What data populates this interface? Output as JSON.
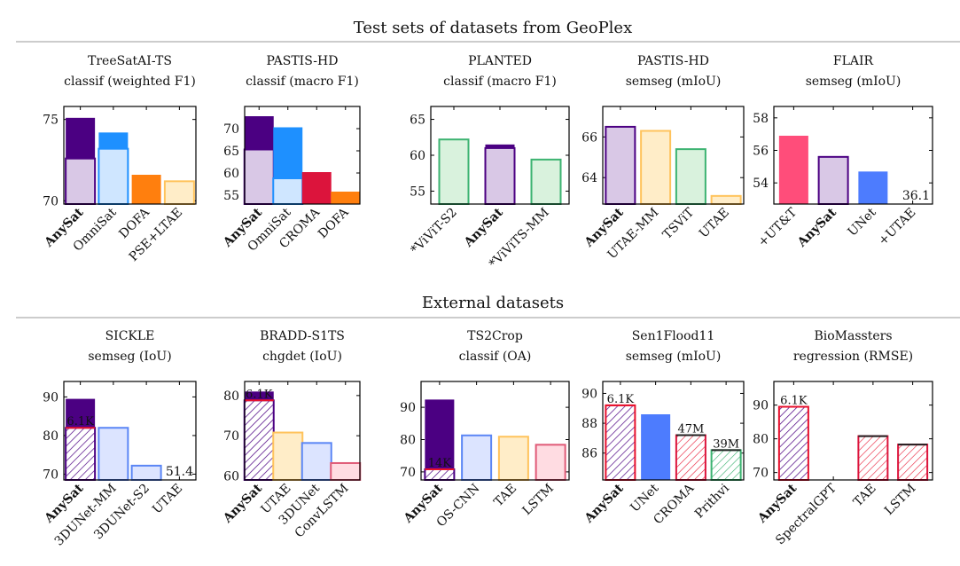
{
  "sections": [
    {
      "title": "Test sets of datasets from GeoPlex"
    },
    {
      "title": "External datasets"
    }
  ],
  "colors": {
    "anysat_dark": "#4B0082",
    "anysat_light": "#D9C8E6",
    "omnisat": "#1E90FF",
    "omnisat_light": "#CFE6FF",
    "dofa": "#FF7F0E",
    "utae": "#FFEDC8",
    "utae_edge": "#FFC35C",
    "croma": "#DC143C",
    "green_light": "#D9F2DD",
    "green_edge": "#3CB371",
    "pink": "#FF4D7A",
    "blue": "#4D7CFE",
    "blue_light": "#DCE4FF",
    "blue_edge": "#5B86F5",
    "convlstm": "#FFDCE2",
    "convlstm_edge": "#E05A77",
    "red_label": "#E8112D"
  },
  "chart_data": [
    {
      "type": "bar",
      "title": "TreeSatAI-TS",
      "subtitle": "classif (weighted F1)",
      "ylim": [
        69.8,
        75.8
      ],
      "yticks": [
        70,
        75
      ],
      "categories": [
        "AnySat",
        "OmniSat",
        "DOFA",
        "PSE+LTAE"
      ],
      "bars": [
        {
          "value": 75.1,
          "base": 72.6,
          "color": "anysat_dark",
          "light": "anysat_light"
        },
        {
          "value": 74.2,
          "base": 73.2,
          "color": "omnisat",
          "light": "omnisat_light"
        },
        {
          "value": 71.6,
          "color": "dofa"
        },
        {
          "value": 71.2,
          "color": "utae",
          "edge": "utae_edge"
        }
      ]
    },
    {
      "type": "bar",
      "title": "PASTIS-HD",
      "subtitle": "classif (macro F1)",
      "ylim": [
        53,
        75
      ],
      "yticks": [
        55,
        60,
        65,
        70
      ],
      "categories": [
        "AnySat",
        "OmniSat",
        "CROMA",
        "DOFA"
      ],
      "bars": [
        {
          "value": 72.8,
          "base": 65.3,
          "color": "anysat_dark",
          "light": "anysat_light"
        },
        {
          "value": 70.3,
          "base": 58.8,
          "color": "omnisat",
          "light": "omnisat_light"
        },
        {
          "value": 60.2,
          "color": "croma"
        },
        {
          "value": 55.8,
          "color": "dofa"
        }
      ]
    },
    {
      "type": "bar",
      "title": "PLANTED",
      "subtitle": "classif (macro F1)",
      "ylim": [
        53.2,
        66.8
      ],
      "yticks": [
        55,
        60,
        65
      ],
      "categories": [
        "*ViViT-S2",
        "AnySat",
        "*ViViTS-MM"
      ],
      "bars": [
        {
          "value": 62.2,
          "color": "green_light",
          "edge": "green_edge"
        },
        {
          "value": 61.5,
          "base": 61.0,
          "color": "anysat_dark",
          "light": "anysat_light"
        },
        {
          "value": 59.4,
          "color": "green_light",
          "edge": "green_edge"
        }
      ]
    },
    {
      "type": "bar",
      "title": "PASTIS-HD",
      "subtitle": "semseg (mIoU)",
      "ylim": [
        62.7,
        67.5
      ],
      "yticks": [
        64,
        66
      ],
      "categories": [
        "AnySat",
        "UTAE-MM",
        "TSViT",
        "UTAE"
      ],
      "bars": [
        {
          "value": 66.5,
          "color": "anysat_light",
          "edge": "anysat_dark"
        },
        {
          "value": 66.3,
          "color": "utae",
          "edge": "utae_edge"
        },
        {
          "value": 65.4,
          "color": "green_light",
          "edge": "green_edge"
        },
        {
          "value": 63.1,
          "color": "utae",
          "edge": "utae_edge"
        }
      ]
    },
    {
      "type": "bar",
      "title": "FLAIR",
      "subtitle": "semseg (mIoU)",
      "ylim": [
        52.7,
        58.7
      ],
      "yticks": [
        54,
        56,
        58
      ],
      "categories": [
        "+UT&T",
        "AnySat",
        "UNet",
        "+UTAE"
      ],
      "bars": [
        {
          "value": 56.9,
          "color": "pink"
        },
        {
          "value": 55.6,
          "color": "anysat_light",
          "edge": "anysat_dark"
        },
        {
          "value": 54.7,
          "color": "blue"
        },
        {
          "value": null
        }
      ],
      "annotations": [
        "36.1"
      ]
    },
    {
      "type": "bar",
      "title": "SICKLE",
      "subtitle": "semseg (IoU)",
      "ylim": [
        68.5,
        94
      ],
      "yticks": [
        70,
        80,
        90
      ],
      "categories": [
        "AnySat",
        "3DUNet-MM",
        "3DUNet-S2",
        "UTAE"
      ],
      "bars": [
        {
          "value": 89.5,
          "base": 82.0,
          "color": "anysat_dark",
          "light": "hatch",
          "label": "6.1K"
        },
        {
          "value": 82.0,
          "color": "blue_light",
          "edge": "blue_edge"
        },
        {
          "value": 72.2,
          "color": "blue_light",
          "edge": "blue_edge"
        },
        {
          "value": null
        }
      ],
      "annotations": [
        "51.4"
      ]
    },
    {
      "type": "bar",
      "title": "BRADD-S1TS",
      "subtitle": "chgdet (IoU)",
      "ylim": [
        59,
        83.5
      ],
      "yticks": [
        60,
        70,
        80
      ],
      "categories": [
        "AnySat",
        "UTAE",
        "3DUNet",
        "ConvLSTM"
      ],
      "bars": [
        {
          "value": 81.0,
          "base": 78.8,
          "color": "anysat_dark",
          "light": "hatch",
          "label": "6.1K"
        },
        {
          "value": 70.8,
          "color": "utae",
          "edge": "utae_edge"
        },
        {
          "value": 68.2,
          "color": "blue_light",
          "edge": "blue_edge"
        },
        {
          "value": 63.2,
          "color": "convlstm",
          "edge": "convlstm_edge"
        }
      ]
    },
    {
      "type": "bar",
      "title": "TS2Crop",
      "subtitle": "classif (OA)",
      "ylim": [
        67.5,
        98
      ],
      "yticks": [
        70,
        80,
        90
      ],
      "categories": [
        "AnySat",
        "OS-CNN",
        "TAE",
        "LSTM"
      ],
      "bars": [
        {
          "value": 92.4,
          "base": 70.8,
          "color": "anysat_dark",
          "light": "hatch",
          "label": "14K"
        },
        {
          "value": 81.3,
          "color": "blue_light",
          "edge": "blue_edge"
        },
        {
          "value": 80.9,
          "color": "utae",
          "edge": "utae_edge"
        },
        {
          "value": 78.4,
          "color": "convlstm",
          "edge": "convlstm_edge"
        }
      ]
    },
    {
      "type": "bar",
      "title": "Sen1Flood11",
      "subtitle": "semseg (mIoU)",
      "ylim": [
        84.2,
        90.8
      ],
      "yticks": [
        86,
        88,
        90
      ],
      "categories": [
        "AnySat",
        "UNet",
        "CROMA",
        "Prithvi"
      ],
      "bars": [
        {
          "value": 89.2,
          "color": "hatch",
          "edge": "red_label",
          "label": "6.1K"
        },
        {
          "value": 88.6,
          "color": "blue"
        },
        {
          "value": 87.2,
          "color": "hatch_red",
          "edge": "croma",
          "label": "47M"
        },
        {
          "value": 86.2,
          "color": "hatch_green",
          "edge": "green_edge",
          "label": "39M"
        }
      ]
    },
    {
      "type": "bar",
      "title": "BioMassters",
      "subtitle": "regression (RMSE)",
      "ylim": [
        67.8,
        97
      ],
      "yticks": [
        70,
        80,
        90
      ],
      "categories": [
        "AnySat",
        "SpectralGPT",
        "TAE",
        "LSTM"
      ],
      "bars": [
        {
          "value": 89.5,
          "color": "hatch",
          "edge": "red_label",
          "label": "6.1K"
        },
        {
          "value": null
        },
        {
          "value": 80.8,
          "color": "hatch_red",
          "edge": "croma"
        },
        {
          "value": 78.3,
          "color": "hatch_red",
          "edge": "croma"
        }
      ]
    }
  ]
}
